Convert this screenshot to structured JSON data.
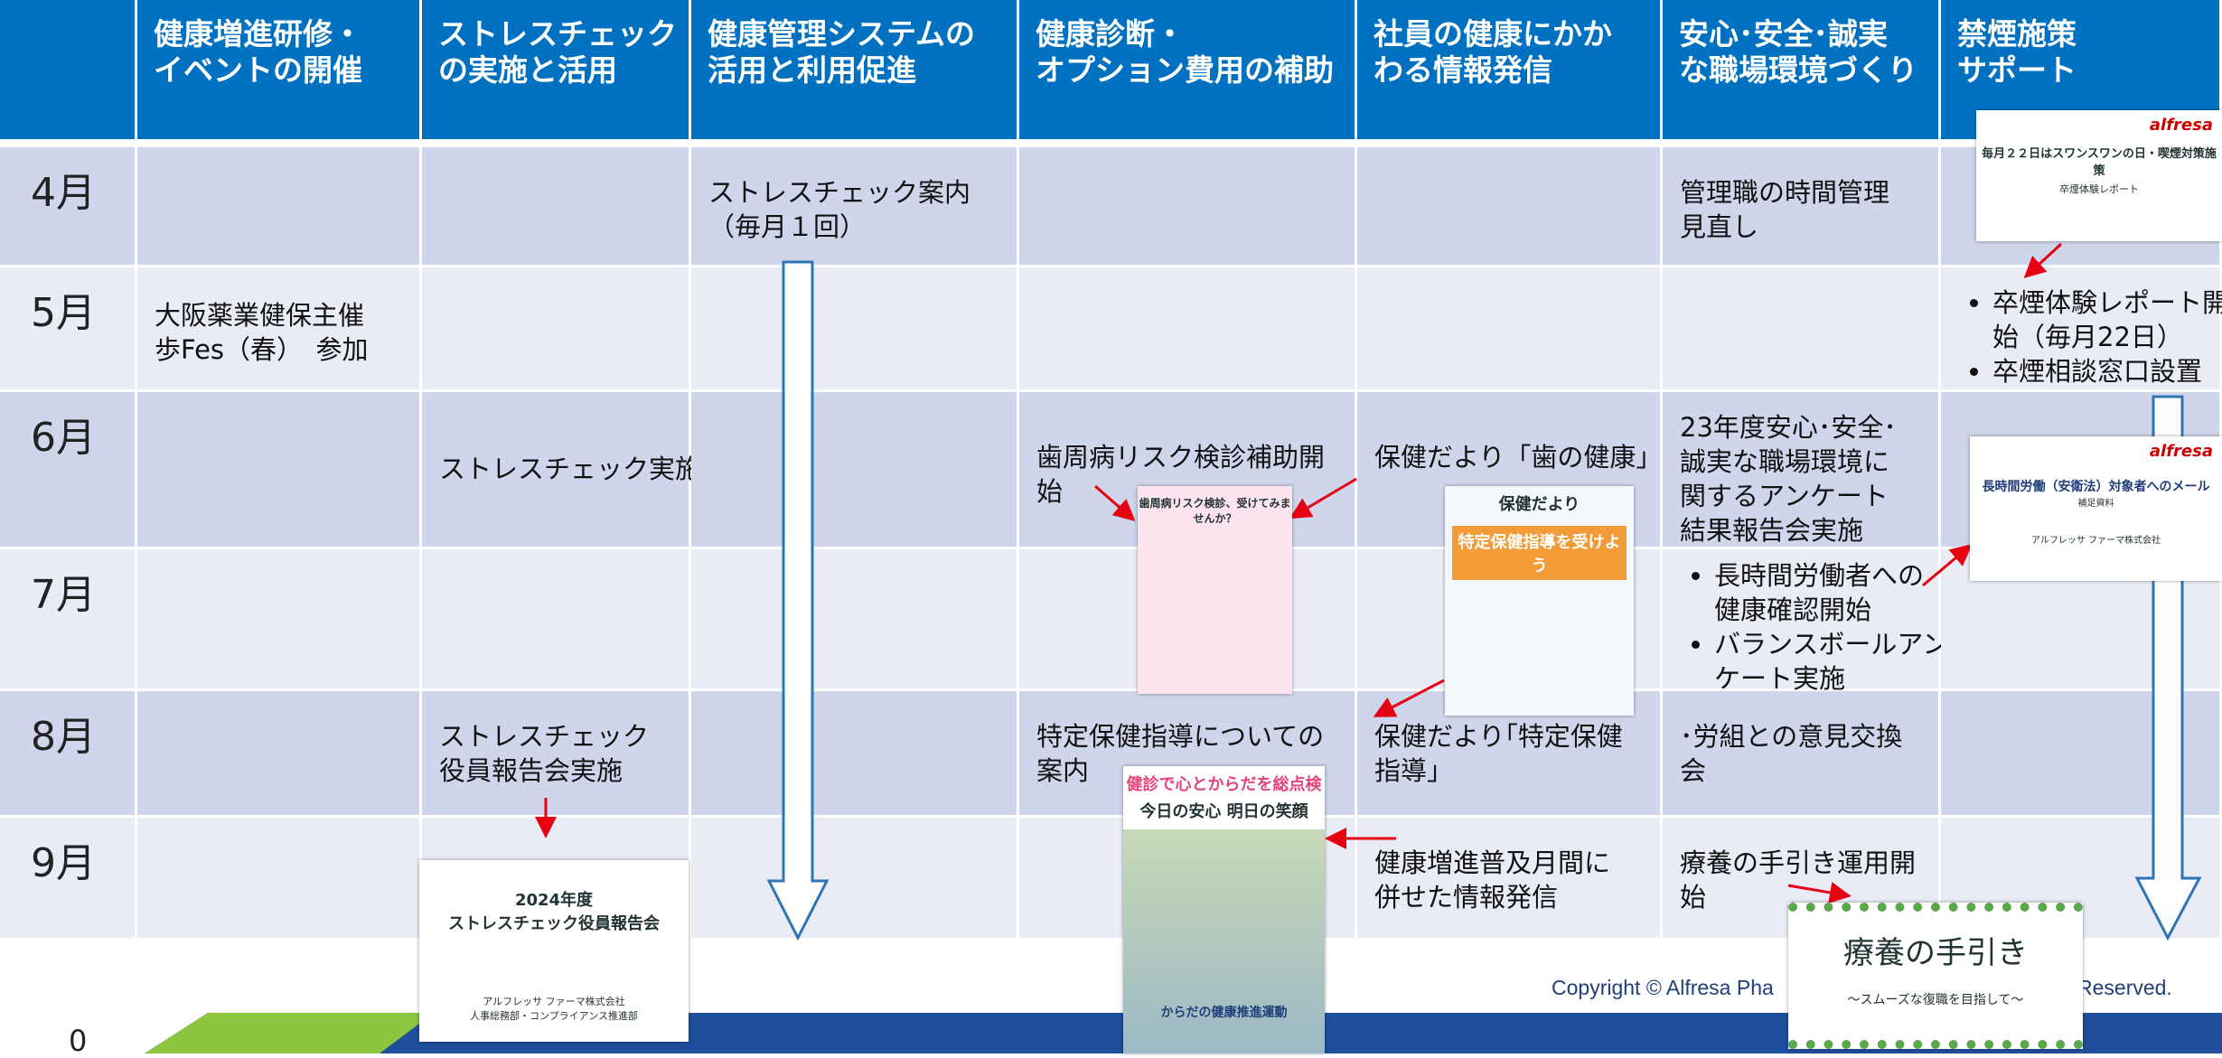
{
  "header": {
    "columns": [
      "健康増進研修・\nイベントの開催",
      "ストレスチェック\nの実施と活用",
      "健康管理システムの\n活用と利用促進",
      "健康診断・\nオプション費用の補助",
      "社員の健康にかか\nわる情報発信",
      "安心･安全･誠実\nな職場環境づくり",
      "禁煙施策\nサポート"
    ]
  },
  "rows": [
    {
      "month": "4月",
      "cells": [
        null,
        null,
        "ストレスチェック案内\n（毎月１回）",
        null,
        null,
        "管理職の時間管理\n見直し",
        null
      ]
    },
    {
      "month": "5月",
      "cells": [
        "大阪薬業健保主催\n歩Fes（春）　参加",
        null,
        null,
        null,
        null,
        null,
        {
          "bullets": [
            "卒煙体験レポート開\n始（毎月22日）",
            "卒煙相談窓口設置"
          ]
        }
      ]
    },
    {
      "month": "6月",
      "cells": [
        null,
        "ストレスチェック実施",
        null,
        "歯周病リスク検診補助開\n始",
        "保健だより「歯の健康」",
        "23年度安心･安全･\n誠実な職場環境に\n関するアンケート\n結果報告会実施",
        null
      ]
    },
    {
      "month": "7月",
      "cells": [
        null,
        null,
        null,
        null,
        null,
        {
          "bullets": [
            "長時間労働者への\n健康確認開始",
            "バランスボールアン\nケート実施"
          ]
        },
        null
      ]
    },
    {
      "month": "8月",
      "cells": [
        null,
        "ストレスチェック\n役員報告会実施",
        null,
        "特定保健指導についての\n案内",
        "保健だより｢特定保健\n指導｣",
        "･労組との意見交換\n会",
        null
      ]
    },
    {
      "month": "9月",
      "cells": [
        null,
        null,
        null,
        null,
        "健康増進普及月間に\n併せた情報発信",
        "療養の手引き運用開\n始",
        null
      ]
    }
  ],
  "thumbnails": {
    "smoking": [
      "alfresa",
      "毎月２２日はスワンスワンの日・喫煙対策施策",
      "卒煙体験レポート"
    ],
    "overtime": [
      "alfresa",
      "長時間労働（安衛法）対象者へのメール",
      "補足資料",
      "アルフレッサ ファーマ株式会社"
    ],
    "dental": [
      "歯周病リスク検診、受けてみませんか？"
    ],
    "newsletter": [
      "保健だより",
      "特定保健指導を受けよう"
    ],
    "poster": [
      "健診で心とからだを総点検",
      "今日の安心 明日の笑顔",
      "からだの健康推進運動"
    ],
    "stress_report": [
      "2024年度\nストレスチェック役員報告会",
      "アルフレッサ ファーマ株式会社\n人事総務部・コンプライアンス推進部"
    ],
    "care_guide": [
      "療養の手引き",
      "～スムーズな復職を目指して～"
    ]
  },
  "footer": {
    "copyright_left": "Copyright © Alfresa Pha",
    "copyright_right": "Reserved.",
    "page": "0"
  }
}
